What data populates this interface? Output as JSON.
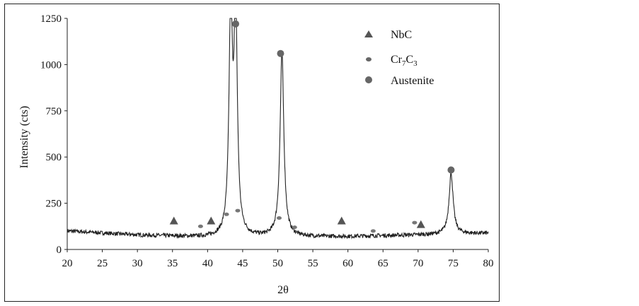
{
  "chart_data": {
    "type": "line",
    "xlabel": "2θ",
    "ylabel": "Intensity (cts)",
    "xlim": [
      20,
      80
    ],
    "ylim": [
      0,
      1250
    ],
    "x_ticks": [
      20,
      25,
      30,
      35,
      40,
      45,
      50,
      55,
      60,
      65,
      70,
      75,
      80
    ],
    "y_ticks": [
      0,
      250,
      500,
      750,
      1000,
      1250
    ],
    "grid": false,
    "legend_position": "top-right",
    "line_color": "#222222",
    "background_level": {
      "x": [
        20,
        30,
        40,
        60,
        80
      ],
      "y": [
        100,
        78,
        66,
        70,
        88
      ]
    },
    "peaks": [
      {
        "center": 43.3,
        "height": 1250
      },
      {
        "center": 44.0,
        "height": 1200
      },
      {
        "center": 50.6,
        "height": 1000
      },
      {
        "center": 74.7,
        "height": 330
      }
    ],
    "legend": [
      {
        "name": "NbC",
        "marker": "triangle",
        "color": "#555555"
      },
      {
        "name_base": "Cr",
        "sub1": "7",
        "mid": "C",
        "sub2": "3",
        "marker": "small-dot",
        "color": "#666666"
      },
      {
        "name": "Austenite",
        "marker": "circle",
        "color": "#666666"
      }
    ],
    "markers": {
      "NbC": [
        {
          "x": 35.2,
          "y": 155
        },
        {
          "x": 40.5,
          "y": 155
        },
        {
          "x": 59.1,
          "y": 155
        },
        {
          "x": 70.4,
          "y": 135
        }
      ],
      "Cr7C3": [
        {
          "x": 39.0,
          "y": 125
        },
        {
          "x": 42.7,
          "y": 190
        },
        {
          "x": 44.3,
          "y": 210
        },
        {
          "x": 50.2,
          "y": 170
        },
        {
          "x": 52.4,
          "y": 120
        },
        {
          "x": 63.6,
          "y": 100
        },
        {
          "x": 69.5,
          "y": 145
        }
      ],
      "Austenite": [
        {
          "x": 44.0,
          "y": 1220
        },
        {
          "x": 50.4,
          "y": 1060
        },
        {
          "x": 74.7,
          "y": 430
        }
      ]
    }
  }
}
